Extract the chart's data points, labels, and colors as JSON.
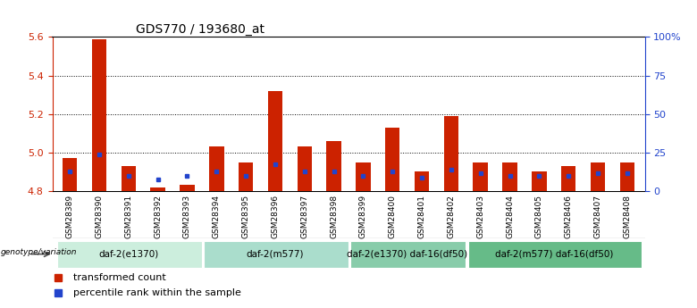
{
  "title": "GDS770 / 193680_at",
  "samples": [
    "GSM28389",
    "GSM28390",
    "GSM28391",
    "GSM28392",
    "GSM28393",
    "GSM28394",
    "GSM28395",
    "GSM28396",
    "GSM28397",
    "GSM28398",
    "GSM28399",
    "GSM28400",
    "GSM28401",
    "GSM28402",
    "GSM28403",
    "GSM28404",
    "GSM28405",
    "GSM28406",
    "GSM28407",
    "GSM28408"
  ],
  "red_values": [
    4.97,
    5.59,
    4.93,
    4.82,
    4.83,
    5.03,
    4.95,
    5.32,
    5.03,
    5.06,
    4.95,
    5.13,
    4.9,
    5.19,
    4.95,
    4.95,
    4.9,
    4.93,
    4.95,
    4.95
  ],
  "blue_values": [
    4.9,
    4.99,
    4.88,
    4.86,
    4.88,
    4.9,
    4.88,
    4.94,
    4.9,
    4.9,
    4.88,
    4.9,
    4.87,
    4.91,
    4.89,
    4.88,
    4.88,
    4.88,
    4.89,
    4.89
  ],
  "ymin": 4.8,
  "ymax": 5.6,
  "y_ticks_left": [
    4.8,
    5.0,
    5.2,
    5.4,
    5.6
  ],
  "y_ticks_right": [
    0,
    25,
    50,
    75,
    100
  ],
  "y_ticks_right_labels": [
    "0",
    "25",
    "50",
    "75",
    "100%"
  ],
  "dotted_lines": [
    5.0,
    5.2,
    5.4
  ],
  "groups": [
    {
      "label": "daf-2(e1370)",
      "start": 0,
      "end": 5
    },
    {
      "label": "daf-2(m577)",
      "start": 5,
      "end": 10
    },
    {
      "label": "daf-2(e1370) daf-16(df50)",
      "start": 10,
      "end": 14
    },
    {
      "label": "daf-2(m577) daf-16(df50)",
      "start": 14,
      "end": 20
    }
  ],
  "group_colors": [
    "#cceedd",
    "#aaddcc",
    "#88ccaa",
    "#66bb88"
  ],
  "bar_color": "#cc2200",
  "dot_color": "#2244cc",
  "bar_width": 0.5,
  "left_axis_color": "#cc2200",
  "right_axis_color": "#2244cc",
  "xtick_bg_color": "#cccccc",
  "legend_items": [
    {
      "label": "transformed count",
      "color": "#cc2200"
    },
    {
      "label": "percentile rank within the sample",
      "color": "#2244cc"
    }
  ]
}
